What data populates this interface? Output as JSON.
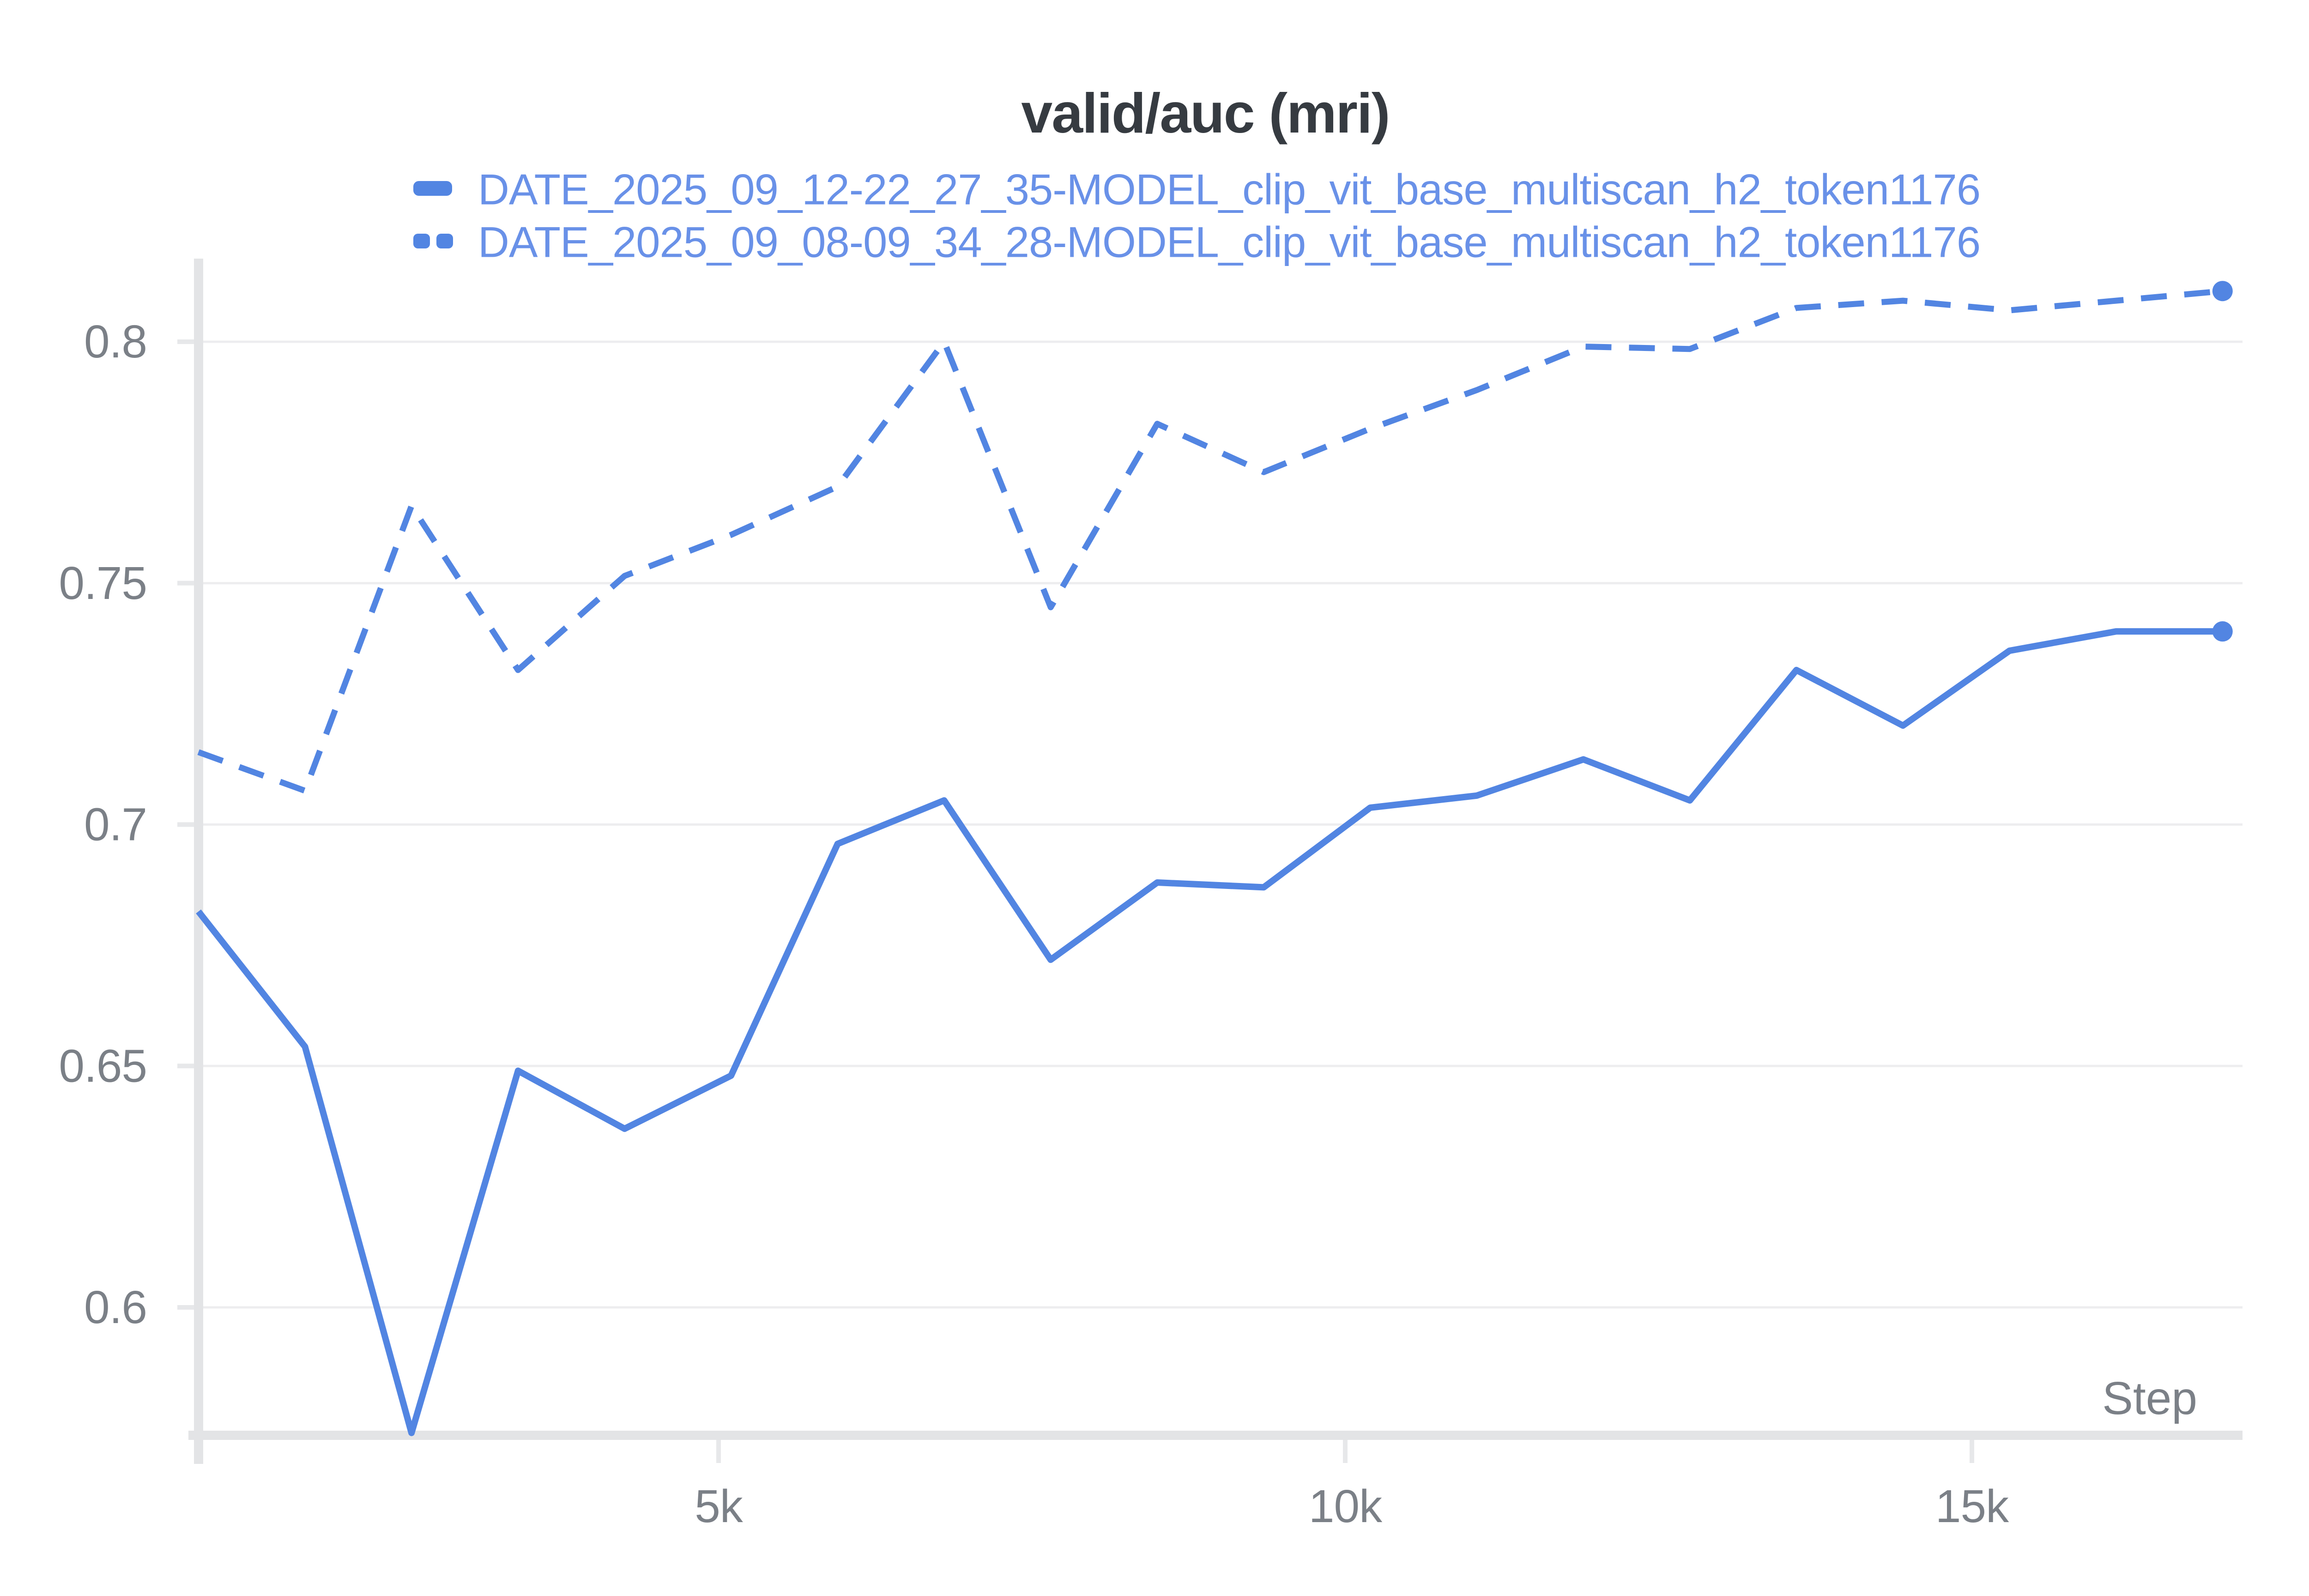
{
  "chart": {
    "title": "valid/auc (mri)",
    "x_axis_label": "Step",
    "colors": {
      "series_line": "#5285e2",
      "legend_text": "#6991e8",
      "title_text": "#363b41",
      "tick_text": "#7b8087",
      "axis_bar": "#e3e4e6",
      "tick_stub": "#e7e8ea",
      "gridline": "#ededef",
      "background": "#ffffff"
    }
  },
  "chart_data": {
    "type": "line",
    "title": "valid/auc (mri)",
    "xlabel": "Step",
    "ylabel": "",
    "legend_position": "top",
    "grid": "horizontal",
    "xlim": [
      850,
      17160
    ],
    "ylim": [
      0.5735,
      0.821
    ],
    "x": [
      850,
      1700,
      2550,
      3400,
      4250,
      5100,
      5950,
      6800,
      7650,
      8500,
      9350,
      10200,
      11050,
      11900,
      12750,
      13600,
      14450,
      15300,
      16150,
      17000
    ],
    "x_ticks": [
      {
        "value": 5000,
        "label": "5k"
      },
      {
        "value": 10000,
        "label": "10k"
      },
      {
        "value": 15000,
        "label": "15k"
      }
    ],
    "y_ticks": [
      {
        "value": 0.8,
        "label": "0.8"
      },
      {
        "value": 0.75,
        "label": "0.75"
      },
      {
        "value": 0.7,
        "label": "0.7"
      },
      {
        "value": 0.65,
        "label": "0.65"
      },
      {
        "value": 0.6,
        "label": "0.6"
      }
    ],
    "series": [
      {
        "name": "DATE_2025_09_12-22_27_35-MODEL_clip_vit_base_multiscan_h2_token1176",
        "style": "solid",
        "end_marker": true,
        "values": [
          0.682,
          0.654,
          0.574,
          0.649,
          0.637,
          0.648,
          0.696,
          0.705,
          0.672,
          0.688,
          0.687,
          0.7035,
          0.706,
          0.7135,
          0.705,
          0.732,
          0.7205,
          0.736,
          0.74,
          0.74
        ]
      },
      {
        "name": "DATE_2025_09_08-09_34_28-MODEL_clip_vit_base_multiscan_h2_token1176",
        "style": "dashed",
        "end_marker": true,
        "values": [
          0.715,
          0.707,
          0.766,
          0.732,
          0.7515,
          0.76,
          0.77,
          0.8,
          0.745,
          0.783,
          0.773,
          0.782,
          0.79,
          0.799,
          0.7985,
          0.807,
          0.8085,
          0.8065,
          0.8085,
          0.8105
        ]
      }
    ]
  }
}
